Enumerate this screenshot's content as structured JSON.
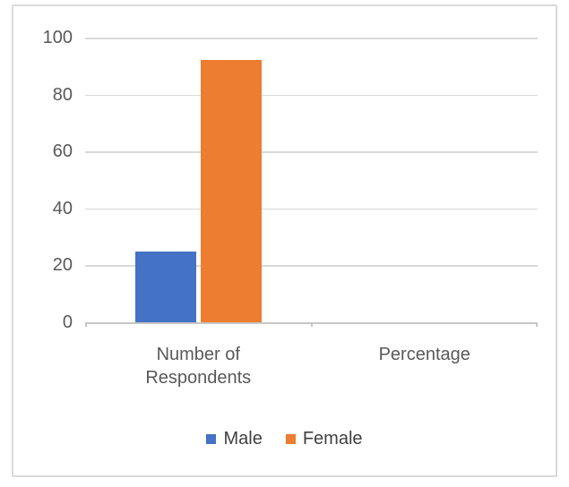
{
  "chart_data": {
    "type": "bar",
    "categories": [
      "Number of Respondents",
      "Percentage"
    ],
    "series": [
      {
        "name": "Male",
        "color": "#4472C4",
        "values": [
          25,
          0
        ]
      },
      {
        "name": "Female",
        "color": "#ED7D31",
        "values": [
          92,
          0
        ]
      }
    ],
    "title": "",
    "xlabel": "",
    "ylabel": "",
    "ylim": [
      0,
      100
    ],
    "yticks": [
      0,
      20,
      40,
      60,
      80,
      100
    ],
    "grid": true,
    "legend_position": "bottom"
  },
  "styles": {
    "male_color": "#4472C4",
    "female_color": "#ED7D31",
    "gridline_color": "#D9D9D9",
    "axis_line_color": "#C6C6C6",
    "label_color": "#595959",
    "legend_text_color": "#404040",
    "frame_border_color": "#D9D9D9",
    "background_color": "#FFFFFF"
  }
}
